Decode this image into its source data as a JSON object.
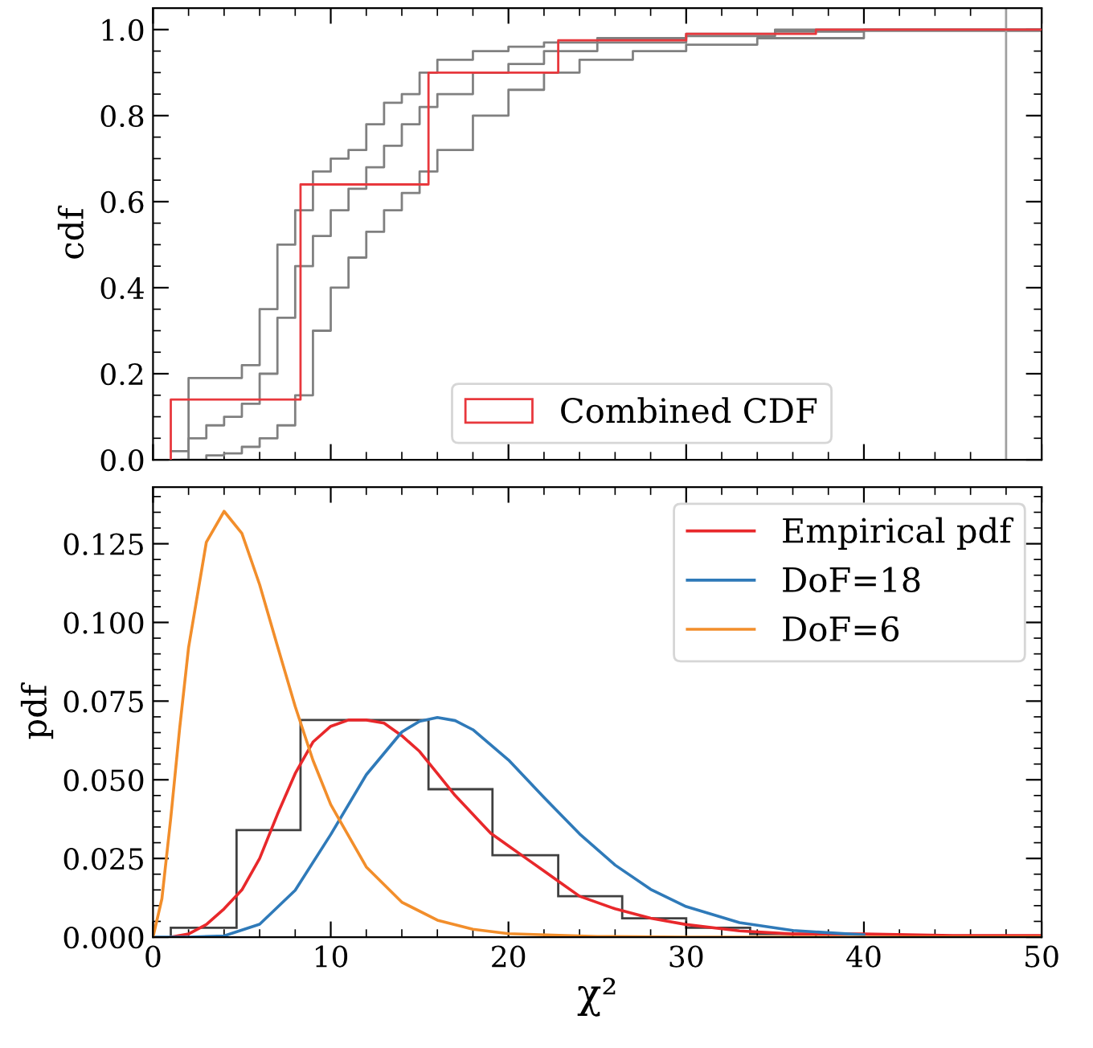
{
  "chart_data": [
    {
      "type": "step",
      "ylabel": "cdf",
      "xlim": [
        0,
        50
      ],
      "xticks": [
        0,
        10,
        20,
        30,
        40,
        50
      ],
      "ylim": [
        0,
        1.05
      ],
      "yticks": [
        {
          "value": 0,
          "label": "0.0"
        },
        {
          "value": 0.2,
          "label": "0.2"
        },
        {
          "value": 0.4,
          "label": "0.4"
        },
        {
          "value": 0.6,
          "label": "0.6"
        },
        {
          "value": 0.8,
          "label": "0.8"
        },
        {
          "value": 1.0,
          "label": "1.0"
        }
      ],
      "tick_labels": "y",
      "legend": "bottom",
      "grid": false,
      "series": [
        {
          "color": "#808080",
          "x": [
            1,
            2,
            3,
            4,
            5,
            6,
            7,
            8,
            9,
            10,
            11,
            12,
            13,
            14,
            15,
            16,
            18,
            20,
            22,
            25,
            30,
            35,
            40,
            50
          ],
          "values": [
            0.02,
            0.19,
            0.19,
            0.19,
            0.22,
            0.35,
            0.5,
            0.58,
            0.67,
            0.7,
            0.72,
            0.78,
            0.83,
            0.85,
            0.9,
            0.93,
            0.95,
            0.96,
            0.97,
            0.98,
            0.99,
            1.0,
            1.0,
            1.0
          ]
        },
        {
          "color": "#808080",
          "x": [
            1.2,
            2,
            3,
            4,
            5,
            6,
            7,
            8,
            9,
            10,
            11,
            12,
            13,
            14,
            15,
            16,
            18,
            20,
            22,
            25,
            30,
            35,
            40,
            50
          ],
          "values": [
            0.0,
            0.05,
            0.08,
            0.1,
            0.13,
            0.2,
            0.33,
            0.45,
            0.52,
            0.58,
            0.63,
            0.68,
            0.73,
            0.78,
            0.82,
            0.85,
            0.9,
            0.92,
            0.95,
            0.97,
            0.985,
            0.995,
            1.0,
            1.0
          ]
        },
        {
          "color": "#808080",
          "x": [
            1.6,
            3,
            4,
            5,
            6,
            7,
            8,
            9,
            10,
            11,
            12,
            13,
            14,
            15,
            16,
            18,
            20,
            22,
            24,
            27,
            30,
            34,
            40,
            50
          ],
          "values": [
            0.0,
            0.01,
            0.015,
            0.03,
            0.05,
            0.08,
            0.15,
            0.3,
            0.4,
            0.47,
            0.53,
            0.58,
            0.62,
            0.67,
            0.72,
            0.8,
            0.86,
            0.9,
            0.93,
            0.95,
            0.965,
            0.98,
            0.997,
            1.0
          ]
        },
        {
          "name": "Combined CDF",
          "color": "#e8383d",
          "x": [
            1.0,
            1.0,
            8.3,
            15.5,
            22.8,
            30.0,
            37.3,
            50
          ],
          "values": [
            0,
            0.14,
            0.64,
            0.9,
            0.975,
            0.99,
            1.0,
            1.0
          ]
        }
      ],
      "ref_lines": [
        {
          "axis": "x",
          "value": 48.0,
          "color": "#a0a0a0"
        }
      ]
    },
    {
      "type": "line",
      "xlabel": "χ²",
      "ylabel": "pdf",
      "xlim": [
        0,
        50
      ],
      "xticks": [
        0,
        10,
        20,
        30,
        40,
        50
      ],
      "ylim": [
        0,
        0.143
      ],
      "yticks": [
        {
          "value": 0,
          "label": "0.000"
        },
        {
          "value": 0.025,
          "label": "0.025"
        },
        {
          "value": 0.05,
          "label": "0.050"
        },
        {
          "value": 0.075,
          "label": "0.075"
        },
        {
          "value": 0.1,
          "label": "0.100"
        },
        {
          "value": 0.125,
          "label": "0.125"
        }
      ],
      "legend": "top right",
      "grid": false,
      "series": [
        {
          "type": "histogram",
          "color": "#404040",
          "bins": [
            1.0,
            4.7,
            8.3,
            11.9,
            15.5,
            19.1,
            22.8,
            26.4,
            30.0,
            33.6,
            37.3
          ],
          "values": [
            0.003,
            0.034,
            0.069,
            0.069,
            0.047,
            0.026,
            0.013,
            0.006,
            0.003,
            0.001
          ]
        },
        {
          "name": "Empirical pdf",
          "color": "#e8282b",
          "x": [
            1,
            2,
            3,
            4,
            5,
            6,
            7,
            8,
            9,
            10,
            11,
            12,
            13,
            14,
            15,
            16,
            17,
            18,
            19,
            20,
            21,
            22,
            23,
            24,
            26,
            28,
            30,
            33,
            36,
            40,
            45,
            50
          ],
          "values": [
            0.0,
            0.001,
            0.004,
            0.009,
            0.015,
            0.025,
            0.039,
            0.052,
            0.062,
            0.067,
            0.069,
            0.069,
            0.068,
            0.064,
            0.059,
            0.052,
            0.045,
            0.039,
            0.033,
            0.029,
            0.025,
            0.021,
            0.017,
            0.013,
            0.009,
            0.006,
            0.004,
            0.002,
            0.001,
            0.001,
            0.0005,
            0.0005
          ]
        },
        {
          "name": "DoF=18",
          "color": "#2f7ab9",
          "x": [
            0,
            2,
            4,
            6,
            8,
            10,
            12,
            14,
            15,
            16,
            17,
            18,
            20,
            22,
            24,
            26,
            28,
            30,
            33,
            36,
            40
          ],
          "values": [
            0.0,
            0.0,
            0.0004,
            0.0041,
            0.0149,
            0.0326,
            0.0516,
            0.0652,
            0.0686,
            0.0698,
            0.0688,
            0.0659,
            0.0563,
            0.0444,
            0.0328,
            0.0229,
            0.0152,
            0.0097,
            0.0046,
            0.0021,
            0.0007
          ]
        },
        {
          "name": "DoF=6",
          "color": "#f28e2b",
          "x": [
            0,
            0.5,
            1,
            1.5,
            2,
            3,
            4,
            5,
            6,
            7,
            8,
            9,
            10,
            12,
            14,
            16,
            18,
            20,
            25,
            30,
            40,
            50
          ],
          "values": [
            0.0,
            0.0122,
            0.0379,
            0.0664,
            0.092,
            0.1255,
            0.1353,
            0.1283,
            0.112,
            0.0925,
            0.0733,
            0.0562,
            0.0421,
            0.0223,
            0.0111,
            0.0054,
            0.0025,
            0.0011,
            0.0002,
            0.0,
            0.0,
            0.0
          ]
        }
      ]
    }
  ]
}
